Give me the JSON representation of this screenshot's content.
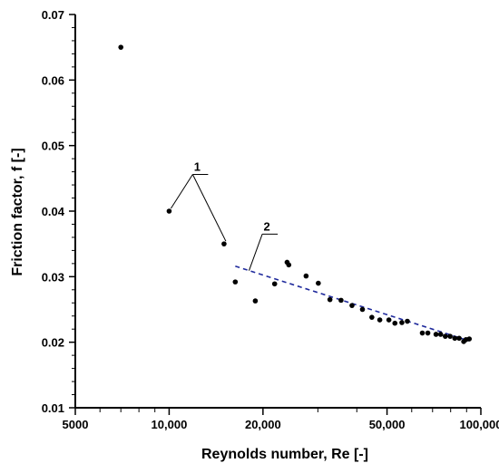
{
  "chart_data": {
    "type": "scatter",
    "title": "",
    "xlabel": "Reynolds number,  Re [-]",
    "ylabel": "Friction factor,  f [-]",
    "x_scale": "log",
    "xlim": [
      5000,
      100000
    ],
    "ylim": [
      0.01,
      0.07
    ],
    "x_ticks": [
      5000,
      10000,
      20000,
      50000,
      100000
    ],
    "x_tick_labels": [
      "5000",
      "10,000",
      "20,000",
      "50,000",
      "100,000"
    ],
    "y_ticks": [
      0.01,
      0.02,
      0.03,
      0.04,
      0.05,
      0.06,
      0.07
    ],
    "y_tick_labels": [
      "0.01",
      "0.02",
      "0.03",
      "0.04",
      "0.05",
      "0.06",
      "0.07"
    ],
    "grid": false,
    "legend": "none",
    "series": [
      {
        "marker_color": "#000000",
        "points": [
          [
            7000,
            0.065
          ],
          [
            10000,
            0.04
          ],
          [
            15000,
            0.035
          ],
          [
            16300,
            0.0292
          ],
          [
            18900,
            0.0263
          ],
          [
            21800,
            0.0289
          ],
          [
            23900,
            0.0322
          ],
          [
            24200,
            0.0318
          ],
          [
            27500,
            0.0301
          ],
          [
            30100,
            0.029
          ],
          [
            32800,
            0.0265
          ],
          [
            35600,
            0.0264
          ],
          [
            38600,
            0.0256
          ],
          [
            41700,
            0.025
          ],
          [
            44700,
            0.0238
          ],
          [
            47400,
            0.0234
          ],
          [
            50700,
            0.0234
          ],
          [
            53000,
            0.0229
          ],
          [
            55800,
            0.023
          ],
          [
            58100,
            0.0232
          ],
          [
            64900,
            0.0214
          ],
          [
            67600,
            0.0214
          ],
          [
            71800,
            0.0212
          ],
          [
            74300,
            0.0212
          ],
          [
            76900,
            0.0209
          ],
          [
            79700,
            0.0209
          ],
          [
            82500,
            0.0206
          ],
          [
            85200,
            0.0206
          ],
          [
            88100,
            0.0201
          ],
          [
            89600,
            0.0204
          ],
          [
            91800,
            0.0205
          ]
        ]
      }
    ],
    "fit_line": {
      "color": "#1f2a9c",
      "style": "dashed",
      "points": [
        [
          16300,
          0.0316
        ],
        [
          91800,
          0.0202
        ]
      ]
    },
    "annotations": [
      {
        "label": "1",
        "anchor": [
          11900,
          0.0456
        ],
        "targets": [
          [
            10000,
            0.04
          ],
          [
            15000,
            0.035
          ]
        ]
      },
      {
        "label": "2",
        "anchor": [
          19900,
          0.0365
        ],
        "targets": [
          [
            17800,
            0.0305
          ]
        ]
      }
    ]
  }
}
